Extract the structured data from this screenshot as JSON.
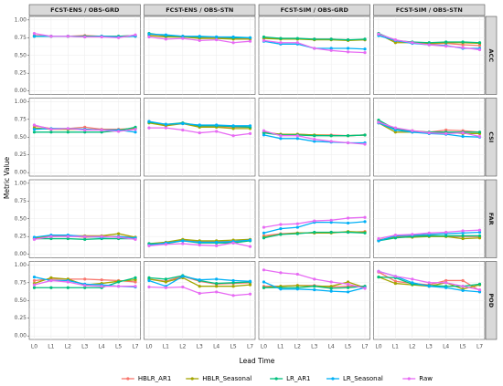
{
  "chart_data": {
    "type": "line",
    "x_label": "Lead Time",
    "y_label": "Metric Value",
    "columns": [
      "FCST-ENS / OBS-GRD",
      "FCST-ENS / OBS-STN",
      "FCST-SIM / OBS-GRD",
      "FCST-SIM / OBS-STN"
    ],
    "rows": [
      "ACC",
      "CSI",
      "FAR",
      "POD"
    ],
    "categories": [
      "L0",
      "L1",
      "L2",
      "L3",
      "L4",
      "L5",
      "L7"
    ],
    "ylim": [
      0,
      1
    ],
    "yticks": [
      {
        "value": 0,
        "label": "0.00"
      },
      {
        "value": 0.25,
        "label": "0.25"
      },
      {
        "value": 0.5,
        "label": "0.50"
      },
      {
        "value": 0.75,
        "label": "0.75"
      },
      {
        "value": 1,
        "label": "1.00"
      }
    ],
    "grid": true,
    "legend": "bottom",
    "series": [
      {
        "name": "HBLR_AR1",
        "color": "#F8766D"
      },
      {
        "name": "HBLR_Seasonal",
        "color": "#A3A500"
      },
      {
        "name": "LR_AR1",
        "color": "#00BF7D"
      },
      {
        "name": "LR_Seasonal",
        "color": "#00B0F6"
      },
      {
        "name": "Raw",
        "color": "#E76BF3"
      }
    ],
    "panels": [
      [
        [
          [
            0.78,
            0.77,
            0.77,
            0.78,
            0.77,
            0.77,
            0.78
          ],
          [
            0.77,
            0.77,
            0.77,
            0.77,
            0.77,
            0.76,
            0.77
          ],
          [
            0.77,
            0.77,
            0.77,
            0.77,
            0.77,
            0.77,
            0.78
          ],
          [
            0.77,
            0.77,
            0.77,
            0.76,
            0.77,
            0.76,
            0.77
          ],
          [
            0.81,
            0.77,
            0.77,
            0.76,
            0.76,
            0.75,
            0.79
          ]
        ],
        [
          [
            0.78,
            0.77,
            0.77,
            0.75,
            0.75,
            0.74,
            0.74
          ],
          [
            0.78,
            0.76,
            0.76,
            0.74,
            0.74,
            0.73,
            0.73
          ],
          [
            0.81,
            0.78,
            0.77,
            0.76,
            0.76,
            0.75,
            0.75
          ],
          [
            0.8,
            0.79,
            0.77,
            0.77,
            0.76,
            0.76,
            0.75
          ],
          [
            0.76,
            0.73,
            0.74,
            0.71,
            0.72,
            0.68,
            0.7
          ]
        ],
        [
          [
            0.75,
            0.74,
            0.73,
            0.73,
            0.73,
            0.72,
            0.72
          ],
          [
            0.74,
            0.73,
            0.73,
            0.72,
            0.72,
            0.71,
            0.72
          ],
          [
            0.76,
            0.74,
            0.74,
            0.73,
            0.73,
            0.72,
            0.73
          ],
          [
            0.7,
            0.66,
            0.66,
            0.6,
            0.6,
            0.6,
            0.59
          ],
          [
            0.71,
            0.68,
            0.68,
            0.6,
            0.57,
            0.55,
            0.54
          ]
        ],
        [
          [
            0.79,
            0.7,
            0.68,
            0.66,
            0.67,
            0.65,
            0.64
          ],
          [
            0.8,
            0.68,
            0.68,
            0.67,
            0.68,
            0.68,
            0.67
          ],
          [
            0.81,
            0.71,
            0.69,
            0.68,
            0.69,
            0.69,
            0.68
          ],
          [
            0.78,
            0.71,
            0.67,
            0.65,
            0.64,
            0.6,
            0.6
          ],
          [
            0.8,
            0.72,
            0.68,
            0.65,
            0.63,
            0.61,
            0.58
          ]
        ]
      ],
      [
        [
          [
            0.66,
            0.62,
            0.62,
            0.64,
            0.61,
            0.61,
            0.62
          ],
          [
            0.63,
            0.61,
            0.61,
            0.61,
            0.6,
            0.6,
            0.63
          ],
          [
            0.57,
            0.57,
            0.57,
            0.57,
            0.57,
            0.59,
            0.64
          ],
          [
            0.61,
            0.62,
            0.62,
            0.61,
            0.6,
            0.6,
            0.57
          ],
          [
            0.67,
            0.61,
            0.62,
            0.6,
            0.6,
            0.58,
            0.61
          ]
        ],
        [
          [
            0.72,
            0.67,
            0.7,
            0.65,
            0.65,
            0.64,
            0.64
          ],
          [
            0.7,
            0.66,
            0.69,
            0.64,
            0.64,
            0.62,
            0.62
          ],
          [
            0.71,
            0.68,
            0.7,
            0.66,
            0.66,
            0.65,
            0.64
          ],
          [
            0.72,
            0.68,
            0.69,
            0.67,
            0.67,
            0.66,
            0.66
          ],
          [
            0.63,
            0.63,
            0.6,
            0.56,
            0.58,
            0.52,
            0.55
          ]
        ],
        [
          [
            0.57,
            0.54,
            0.54,
            0.53,
            0.53,
            0.52,
            0.53
          ],
          [
            0.56,
            0.54,
            0.54,
            0.53,
            0.52,
            0.52,
            0.53
          ],
          [
            0.56,
            0.53,
            0.53,
            0.52,
            0.52,
            0.52,
            0.53
          ],
          [
            0.53,
            0.48,
            0.48,
            0.44,
            0.43,
            0.42,
            0.42
          ],
          [
            0.59,
            0.52,
            0.52,
            0.47,
            0.44,
            0.42,
            0.4
          ]
        ],
        [
          [
            0.72,
            0.61,
            0.59,
            0.57,
            0.6,
            0.59,
            0.57
          ],
          [
            0.7,
            0.57,
            0.57,
            0.56,
            0.57,
            0.55,
            0.55
          ],
          [
            0.74,
            0.61,
            0.58,
            0.57,
            0.57,
            0.57,
            0.57
          ],
          [
            0.7,
            0.6,
            0.57,
            0.55,
            0.54,
            0.51,
            0.5
          ],
          [
            0.71,
            0.63,
            0.59,
            0.56,
            0.55,
            0.56,
            0.51
          ]
        ]
      ],
      [
        [
          [
            0.23,
            0.25,
            0.26,
            0.24,
            0.25,
            0.25,
            0.24
          ],
          [
            0.22,
            0.26,
            0.26,
            0.26,
            0.26,
            0.29,
            0.24
          ],
          [
            0.22,
            0.22,
            0.22,
            0.21,
            0.22,
            0.22,
            0.22
          ],
          [
            0.24,
            0.27,
            0.27,
            0.25,
            0.24,
            0.25,
            0.23
          ],
          [
            0.21,
            0.25,
            0.25,
            0.25,
            0.25,
            0.24,
            0.21
          ]
        ],
        [
          [
            0.14,
            0.16,
            0.2,
            0.18,
            0.18,
            0.18,
            0.2
          ],
          [
            0.15,
            0.17,
            0.21,
            0.19,
            0.19,
            0.2,
            0.21
          ],
          [
            0.15,
            0.15,
            0.19,
            0.16,
            0.16,
            0.16,
            0.19
          ],
          [
            0.13,
            0.16,
            0.19,
            0.17,
            0.17,
            0.18,
            0.2
          ],
          [
            0.12,
            0.14,
            0.15,
            0.13,
            0.12,
            0.16,
            0.11
          ]
        ],
        [
          [
            0.26,
            0.29,
            0.3,
            0.3,
            0.31,
            0.31,
            0.32
          ],
          [
            0.24,
            0.28,
            0.3,
            0.3,
            0.3,
            0.32,
            0.31
          ],
          [
            0.23,
            0.28,
            0.29,
            0.31,
            0.31,
            0.31,
            0.3
          ],
          [
            0.3,
            0.36,
            0.38,
            0.45,
            0.45,
            0.44,
            0.46
          ],
          [
            0.38,
            0.42,
            0.43,
            0.47,
            0.48,
            0.51,
            0.52
          ]
        ],
        [
          [
            0.2,
            0.25,
            0.26,
            0.27,
            0.25,
            0.25,
            0.25
          ],
          [
            0.2,
            0.24,
            0.24,
            0.25,
            0.25,
            0.22,
            0.23
          ],
          [
            0.19,
            0.23,
            0.25,
            0.26,
            0.26,
            0.26,
            0.26
          ],
          [
            0.19,
            0.26,
            0.27,
            0.28,
            0.29,
            0.3,
            0.31
          ],
          [
            0.22,
            0.27,
            0.28,
            0.3,
            0.31,
            0.33,
            0.34
          ]
        ]
      ],
      [
        [
          [
            0.78,
            0.8,
            0.8,
            0.8,
            0.79,
            0.78,
            0.76
          ],
          [
            0.74,
            0.82,
            0.8,
            0.72,
            0.74,
            0.77,
            0.79
          ],
          [
            0.68,
            0.68,
            0.68,
            0.68,
            0.68,
            0.76,
            0.82
          ],
          [
            0.83,
            0.78,
            0.78,
            0.73,
            0.72,
            0.7,
            0.69
          ],
          [
            0.72,
            0.78,
            0.76,
            0.71,
            0.7,
            0.7,
            0.7
          ]
        ],
        [
          [
            0.8,
            0.77,
            0.84,
            0.77,
            0.73,
            0.74,
            0.75
          ],
          [
            0.8,
            0.76,
            0.82,
            0.7,
            0.7,
            0.7,
            0.72
          ],
          [
            0.82,
            0.8,
            0.85,
            0.78,
            0.74,
            0.75,
            0.76
          ],
          [
            0.78,
            0.7,
            0.84,
            0.79,
            0.8,
            0.78,
            0.77
          ],
          [
            0.69,
            0.68,
            0.69,
            0.6,
            0.62,
            0.57,
            0.59
          ]
        ],
        [
          [
            0.7,
            0.7,
            0.71,
            0.71,
            0.69,
            0.7,
            0.7
          ],
          [
            0.68,
            0.7,
            0.71,
            0.7,
            0.7,
            0.76,
            0.68
          ],
          [
            0.68,
            0.68,
            0.68,
            0.7,
            0.67,
            0.68,
            0.7
          ],
          [
            0.76,
            0.66,
            0.66,
            0.65,
            0.63,
            0.62,
            0.68
          ],
          [
            0.93,
            0.89,
            0.87,
            0.8,
            0.76,
            0.73,
            0.67
          ]
        ],
        [
          [
            0.9,
            0.77,
            0.74,
            0.72,
            0.78,
            0.78,
            0.64
          ],
          [
            0.83,
            0.74,
            0.72,
            0.7,
            0.75,
            0.66,
            0.72
          ],
          [
            0.83,
            0.82,
            0.73,
            0.71,
            0.7,
            0.7,
            0.73
          ],
          [
            0.91,
            0.84,
            0.75,
            0.7,
            0.68,
            0.64,
            0.62
          ],
          [
            0.91,
            0.84,
            0.8,
            0.75,
            0.75,
            0.7,
            0.65
          ]
        ]
      ]
    ]
  }
}
